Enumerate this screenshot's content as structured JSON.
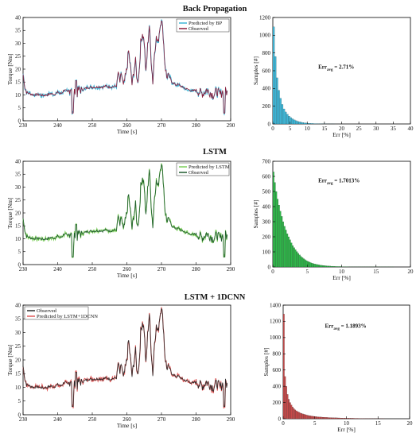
{
  "chart_data": [
    {
      "type": "line",
      "title": "Back Propagation",
      "xlabel": "Time [s]",
      "ylabel": "Torque [Nm]",
      "xlim": [
        230,
        290
      ],
      "ylim": [
        0,
        40
      ],
      "xticks": [
        230,
        240,
        250,
        260,
        270,
        280,
        290
      ],
      "yticks": [
        0,
        5,
        10,
        15,
        20,
        25,
        30,
        35,
        40
      ],
      "legend_position": "top-right",
      "series": [
        {
          "name": "Predicted by BP",
          "color": "#3fb6d6",
          "role": "pred"
        },
        {
          "name": "Observed",
          "color": "#8b1c3a",
          "role": "obs"
        }
      ]
    },
    {
      "type": "bar",
      "xlabel": "Err [%]",
      "ylabel": "Samples [#]",
      "xlim": [
        0,
        40
      ],
      "ylim": [
        0,
        1200
      ],
      "xticks": [
        0,
        5,
        10,
        15,
        20,
        25,
        30,
        35,
        40
      ],
      "yticks": [
        0,
        200,
        400,
        600,
        800,
        1000,
        1200
      ],
      "bar_color": "#3fb6d6",
      "annotation": {
        "main": "Err",
        "sub": "avg",
        "value": " = 2.71%"
      },
      "bins": {
        "start": 0,
        "width": 0.5,
        "values": [
          1095,
          760,
          520,
          380,
          290,
          220,
          170,
          135,
          110,
          88,
          72,
          58,
          46,
          37,
          30,
          24,
          19,
          15,
          12,
          10,
          8,
          7,
          6,
          5,
          4,
          4,
          3,
          3,
          2,
          2,
          2,
          1,
          1,
          1,
          1,
          1
        ]
      }
    },
    {
      "type": "line",
      "title": "LSTM",
      "xlabel": "Time [s]",
      "ylabel": "Torque [Nm]",
      "xlim": [
        230,
        290
      ],
      "ylim": [
        0,
        40
      ],
      "xticks": [
        230,
        240,
        250,
        260,
        270,
        280,
        290
      ],
      "yticks": [
        0,
        5,
        10,
        15,
        20,
        25,
        30,
        35,
        40
      ],
      "legend_position": "top-right",
      "series": [
        {
          "name": "Predicted by LSTM",
          "color": "#7ccf5a",
          "role": "pred"
        },
        {
          "name": "Observed",
          "color": "#1f5a2e",
          "role": "obs"
        }
      ]
    },
    {
      "type": "bar",
      "xlabel": "Err [%]",
      "ylabel": "Samples [#]",
      "xlim": [
        0,
        20
      ],
      "ylim": [
        0,
        700
      ],
      "xticks": [
        0,
        5,
        10,
        15,
        20
      ],
      "yticks": [
        0,
        100,
        200,
        300,
        400,
        500,
        600,
        700
      ],
      "bar_color": "#2fb84a",
      "annotation": {
        "main": "Err",
        "sub": "avg",
        "value": " = 1.7013%"
      },
      "bins": {
        "start": 0,
        "width": 0.2,
        "values": [
          630,
          560,
          500,
          450,
          410,
          370,
          335,
          300,
          270,
          245,
          220,
          200,
          180,
          160,
          142,
          128,
          115,
          102,
          90,
          80,
          70,
          62,
          55,
          48,
          42,
          37,
          33,
          29,
          25,
          22,
          20,
          18,
          16,
          14,
          12,
          11,
          10,
          9,
          8,
          7,
          6,
          6,
          5,
          5,
          4,
          4,
          3,
          3,
          3,
          3,
          2,
          2,
          2,
          2,
          2,
          1,
          1,
          1,
          1,
          1,
          1,
          1,
          1,
          1,
          1,
          1,
          1,
          1,
          1,
          1,
          1,
          1,
          1,
          1,
          1,
          1,
          1,
          1,
          1,
          1,
          1,
          1,
          1,
          1,
          1,
          1,
          1,
          1
        ]
      }
    },
    {
      "type": "line",
      "title": "LSTM + 1DCNN",
      "xlabel": "Time [s]",
      "ylabel": "Torque [Nm]",
      "xlim": [
        230,
        290
      ],
      "ylim": [
        0,
        40
      ],
      "xticks": [
        230,
        240,
        250,
        260,
        270,
        280,
        290
      ],
      "yticks": [
        0,
        5,
        10,
        15,
        20,
        25,
        30,
        35,
        40
      ],
      "legend_position": "top-left",
      "series": [
        {
          "name": "Observed",
          "color": "#2a2a2a",
          "role": "obs"
        },
        {
          "name": "Predicted by LSTM+1DCNN",
          "color": "#e05a5a",
          "role": "pred"
        }
      ]
    },
    {
      "type": "bar",
      "xlabel": "Err [%]",
      "ylabel": "Samples [#]",
      "xlim": [
        0,
        20
      ],
      "ylim": [
        0,
        1400
      ],
      "xticks": [
        0,
        5,
        10,
        15,
        20
      ],
      "yticks": [
        0,
        200,
        400,
        600,
        800,
        1000,
        1200,
        1400
      ],
      "bar_color": "#c84a4a",
      "annotation": {
        "main": "Err",
        "sub": "avg",
        "value": " = 1.1893%"
      },
      "bins": {
        "start": 0,
        "width": 0.2,
        "values": [
          1290,
          520,
          400,
          300,
          240,
          200,
          170,
          145,
          125,
          110,
          98,
          88,
          80,
          72,
          65,
          60,
          55,
          50,
          46,
          42,
          39,
          36,
          33,
          31,
          29,
          27,
          25,
          23,
          22,
          21,
          20,
          19,
          18,
          17,
          16,
          15,
          14,
          14,
          13,
          12,
          12,
          11,
          11,
          10,
          10,
          9,
          9,
          8,
          8,
          8,
          7,
          7,
          7,
          6,
          6,
          6,
          5,
          5,
          5,
          5,
          4,
          4,
          4,
          4,
          3,
          3,
          3,
          3,
          3,
          3,
          2,
          2,
          2,
          2,
          2,
          2,
          2,
          2,
          2,
          2
        ]
      }
    }
  ],
  "torque_trace": {
    "t": [
      230,
      230.5,
      231,
      232,
      233,
      234,
      235,
      236,
      237,
      238,
      239,
      240,
      241,
      242,
      243,
      244,
      244.5,
      245,
      245.5,
      246,
      247,
      248,
      249,
      250,
      251,
      252,
      253,
      254,
      255,
      256,
      257,
      257.5,
      258,
      258.5,
      259,
      260,
      260.5,
      261,
      261.5,
      262,
      262.5,
      263,
      263.5,
      264,
      264.5,
      265,
      265.5,
      266,
      266.5,
      267,
      267.5,
      268,
      268.5,
      269,
      269.5,
      270,
      270.5,
      271,
      271.5,
      272,
      273,
      274,
      275,
      276,
      277,
      278,
      279,
      280,
      281,
      282,
      283,
      284,
      285,
      286,
      287,
      288,
      289
    ],
    "y": [
      18,
      13,
      11,
      10.5,
      10,
      10.2,
      10,
      9.8,
      10,
      10.5,
      10.2,
      11,
      10.5,
      12,
      11,
      13,
      8,
      12,
      10,
      12,
      12,
      12.5,
      13,
      13,
      13,
      13.2,
      13,
      13.5,
      13,
      13.2,
      13.5,
      19,
      15,
      18,
      13,
      20,
      27,
      21,
      14,
      19,
      23,
      15,
      18,
      30,
      34,
      31,
      18,
      29,
      37,
      24,
      15,
      27,
      32,
      30,
      36,
      40,
      33,
      22,
      17,
      18,
      15,
      14,
      14,
      13,
      12.5,
      12,
      11.5,
      12,
      11,
      10.5,
      12,
      11,
      10,
      11.5,
      10,
      12,
      11
    ]
  }
}
